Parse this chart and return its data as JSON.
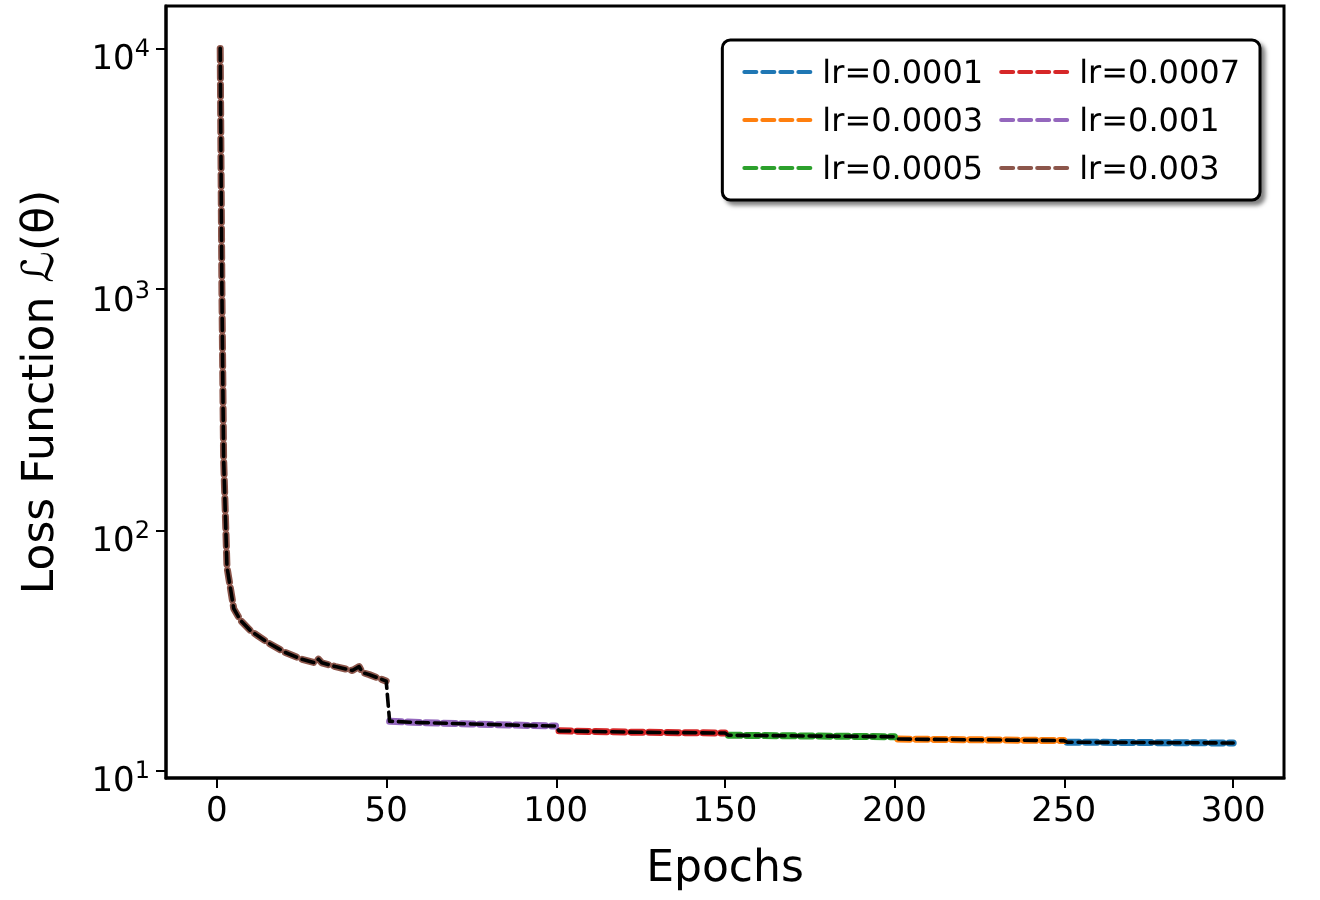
{
  "chart_data": {
    "type": "line",
    "xlabel": "Epochs",
    "ylabel": "Loss Function ℒ(θ)",
    "log": "y",
    "xlim": [
      -15,
      315
    ],
    "xticks": [
      0,
      50,
      100,
      150,
      200,
      250,
      300
    ],
    "ylim": [
      9.3,
      15000
    ],
    "yticks": [
      {
        "value": 10,
        "label": "10$^{1}$"
      },
      {
        "value": 100,
        "label": "10$^{2}$"
      },
      {
        "value": 1000,
        "label": "10$^{3}$"
      },
      {
        "value": 10000,
        "label": "10$^{4}$"
      }
    ],
    "grid": false,
    "legend": "top right",
    "marker": "none",
    "line_style": "dashed",
    "series": [
      {
        "name": "lr=0.0001",
        "color": "#1f77b4",
        "x": [
          251,
          275,
          300
        ],
        "values": [
          13.1,
          13.05,
          13.0
        ]
      },
      {
        "name": "lr=0.0003",
        "color": "#ff7f0e",
        "x": [
          201,
          225,
          250
        ],
        "values": [
          13.5,
          13.4,
          13.3
        ]
      },
      {
        "name": "lr=0.0005",
        "color": "#2ca02c",
        "x": [
          151,
          175,
          200
        ],
        "values": [
          14.0,
          13.9,
          13.8
        ]
      },
      {
        "name": "lr=0.0007",
        "color": "#d62728",
        "x": [
          101,
          125,
          150
        ],
        "values": [
          14.6,
          14.4,
          14.3
        ]
      },
      {
        "name": "lr=0.001",
        "color": "#9467bd",
        "x": [
          51,
          60,
          75,
          90,
          100
        ],
        "values": [
          16,
          15.8,
          15.6,
          15.4,
          15.3
        ]
      },
      {
        "name": "lr=0.003",
        "color": "#8c564b",
        "x": [
          1,
          1.5,
          2,
          3,
          5,
          7,
          10,
          15,
          20,
          25,
          29,
          30,
          31,
          35,
          40,
          42,
          43,
          45,
          50
        ],
        "values": [
          10000,
          1000,
          200,
          70,
          47,
          42,
          38,
          34,
          31,
          29,
          28,
          29,
          28,
          27,
          26,
          27,
          25.5,
          25,
          23.5
        ]
      },
      {
        "color": "#000000",
        "x": [
          1,
          1.5,
          2,
          3,
          5,
          7,
          10,
          15,
          20,
          25,
          29,
          30,
          31,
          35,
          40,
          42,
          43,
          45,
          50,
          51,
          60,
          75,
          90,
          100,
          101,
          125,
          150,
          151,
          175,
          200,
          201,
          225,
          250,
          251,
          275,
          300
        ],
        "values": [
          10000,
          1000,
          200,
          70,
          47,
          42,
          38,
          34,
          31,
          29,
          28,
          29,
          28,
          27,
          26,
          27,
          25.5,
          25,
          23.5,
          16,
          15.8,
          15.6,
          15.4,
          15.3,
          14.6,
          14.4,
          14.3,
          14.0,
          13.9,
          13.8,
          13.5,
          13.4,
          13.3,
          13.1,
          13.05,
          13.0
        ]
      }
    ]
  }
}
